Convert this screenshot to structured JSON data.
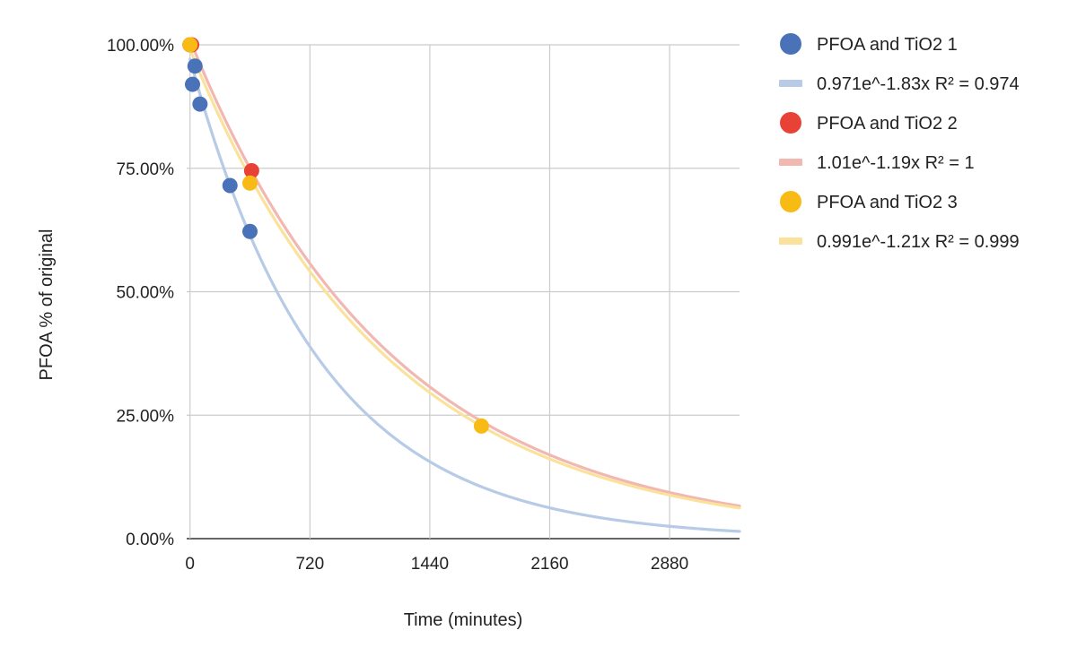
{
  "chart_data": {
    "type": "scatter",
    "xlabel": "Time (minutes)",
    "ylabel": "PFOA % of original",
    "xlim": [
      -20,
      3300
    ],
    "ylim": [
      0,
      1.0
    ],
    "xticks": [
      0,
      720,
      1440,
      2160,
      2880
    ],
    "yticks": [
      0,
      0.25,
      0.5,
      0.75,
      1.0
    ],
    "ytick_labels": [
      "0.00%",
      "25.00%",
      "50.00%",
      "75.00%",
      "100.00%"
    ],
    "grid": true,
    "legend_position": "right",
    "series": [
      {
        "name": "PFOA and TiO2 1",
        "color": "#4a72b8",
        "points": [
          [
            0,
            1.0
          ],
          [
            15,
            0.92
          ],
          [
            30,
            0.957
          ],
          [
            60,
            0.88
          ],
          [
            240,
            0.715
          ],
          [
            360,
            0.622
          ]
        ],
        "trendline": {
          "label": "0.971e^-1.83x R² = 0.974",
          "a": 0.971,
          "k": 1.83,
          "color": "#b7cbe6"
        }
      },
      {
        "name": "PFOA and TiO2 2",
        "color": "#e84236",
        "points": [
          [
            0,
            1.0
          ],
          [
            10,
            1.0
          ],
          [
            370,
            0.745
          ]
        ],
        "trendline": {
          "label": "1.01e^-1.19x R² = 1",
          "a": 1.01,
          "k": 1.19,
          "color": "#f3b7b1"
        }
      },
      {
        "name": "PFOA and TiO2 3",
        "color": "#f8bb16",
        "points": [
          [
            0,
            1.0
          ],
          [
            360,
            0.72
          ],
          [
            1750,
            0.228
          ]
        ],
        "trendline": {
          "label": "0.991e^-1.21x R² = 0.999",
          "a": 0.991,
          "k": 1.21,
          "color": "#fbe29c"
        }
      }
    ]
  }
}
